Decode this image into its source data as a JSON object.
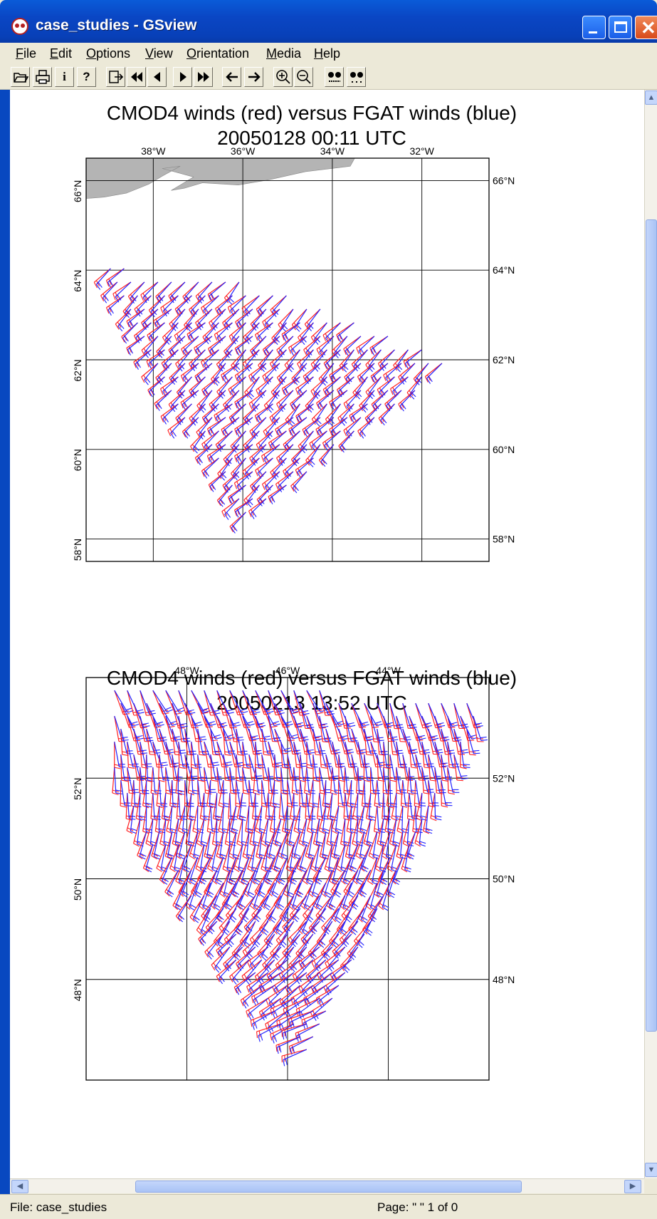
{
  "window": {
    "title": "case_studies - GSview"
  },
  "menu": [
    "File",
    "Edit",
    "Options",
    "View",
    "Orientation",
    "Media",
    "Help"
  ],
  "toolbar_icons": [
    "open-icon",
    "print-icon",
    "info-icon",
    "help-icon",
    "goto-page-icon",
    "first-page-icon",
    "prev-page-icon",
    "next-page-icon",
    "last-page-icon",
    "back-icon",
    "forward-icon",
    "zoom-in-icon",
    "zoom-out-icon",
    "find-text-icon",
    "find-next-icon"
  ],
  "toolbar_labels": {
    "info": "i",
    "help": "?"
  },
  "status": {
    "file": "File: case_studies",
    "page": "Page: \" \"  1 of 0"
  },
  "colors": {
    "cmod4": "#ff2020",
    "fgat": "#2020ff",
    "land": "#b4b4b4"
  },
  "chart_data": [
    {
      "type": "scatter",
      "subtype": "wind-barb-map",
      "title": "CMOD4 winds (red) versus FGAT winds (blue)",
      "subtitle": "20050128 00:11 UTC",
      "series": [
        {
          "color": "red",
          "source": "CMOD4"
        },
        {
          "color": "blue",
          "source": "FGAT"
        }
      ],
      "lon_range": [
        -39.5,
        -30.5
      ],
      "lat_range": [
        57.5,
        66.5
      ],
      "lon_ticks": [
        -38,
        -36,
        -34,
        -32
      ],
      "lon_tick_labels": [
        "38°W",
        "36°W",
        "34°W",
        "32°W"
      ],
      "lat_ticks": [
        66,
        64,
        62,
        60,
        58
      ],
      "lat_tick_labels_left": [
        "66°N",
        "64°N",
        "62°N",
        "60°N",
        "58°N"
      ],
      "lat_tick_labels_right": [
        "66°N",
        "64°N",
        "62°N",
        "60°N",
        "58°N"
      ],
      "swath_corners": [
        [
          -39.2,
          64.1
        ],
        [
          -36.0,
          63.8
        ],
        [
          -33.2,
          62.8
        ],
        [
          -31.2,
          62.0
        ],
        [
          -36.0,
          58.4
        ]
      ],
      "barb_direction_deg": 220,
      "land": "top-left coast"
    },
    {
      "type": "scatter",
      "subtype": "wind-barb-map",
      "title": "CMOD4 winds (red) versus FGAT winds (blue)",
      "subtitle": "20050213 13:52 UTC",
      "series": [
        {
          "color": "red",
          "source": "CMOD4"
        },
        {
          "color": "blue",
          "source": "FGAT"
        }
      ],
      "lon_range": [
        -50,
        -42
      ],
      "lat_range": [
        46,
        54
      ],
      "lon_ticks": [
        -48,
        -46,
        -44
      ],
      "lon_tick_labels": [
        "48°W",
        "46°W",
        "44°W"
      ],
      "lat_ticks": [
        52,
        50,
        48
      ],
      "lat_tick_labels_left": [
        "52°N",
        "50°N",
        "48°N"
      ],
      "lat_tick_labels_right": [
        "52°N",
        "50°N",
        "48°N"
      ],
      "swath_corners": [
        [
          -49.5,
          53.8
        ],
        [
          -42.1,
          53.7
        ],
        [
          -43.1,
          51.3
        ],
        [
          -44.2,
          49.3
        ],
        [
          -45.6,
          46.3
        ],
        [
          -49.6,
          52.0
        ]
      ],
      "barb_direction_deg": 290,
      "land": "none"
    }
  ]
}
